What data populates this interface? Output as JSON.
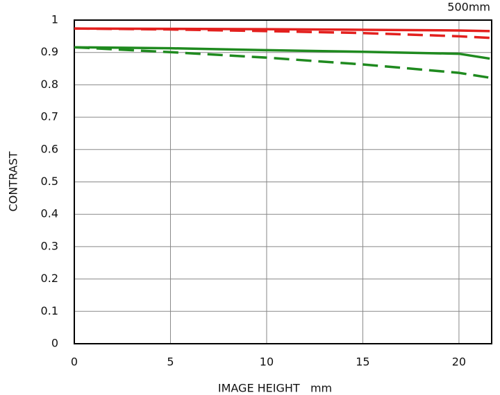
{
  "chart_data": {
    "type": "line",
    "subtitle": "500mm",
    "y_label": "CONTRAST",
    "x_label": "IMAGE HEIGHT   mm",
    "x": [
      0,
      5,
      10,
      15,
      20,
      21.6
    ],
    "series": [
      {
        "color": "#e3201e",
        "dash": false,
        "values": [
          0.974,
          0.973,
          0.972,
          0.97,
          0.968,
          0.966
        ]
      },
      {
        "color": "#e3201e",
        "dash": true,
        "values": [
          0.974,
          0.971,
          0.966,
          0.96,
          0.95,
          0.945
        ]
      },
      {
        "color": "#1f8a1f",
        "dash": false,
        "values": [
          0.916,
          0.913,
          0.907,
          0.902,
          0.896,
          0.881
        ]
      },
      {
        "color": "#1f8a1f",
        "dash": true,
        "values": [
          0.916,
          0.901,
          0.884,
          0.863,
          0.837,
          0.822
        ]
      }
    ],
    "xlim": [
      0,
      21.7
    ],
    "xticks": [
      0,
      5,
      10,
      15,
      20
    ],
    "ylim": [
      0,
      1
    ],
    "yticks": [
      0,
      0.1,
      0.2,
      0.3,
      0.4,
      0.5,
      0.6,
      0.7,
      0.8,
      0.9,
      1
    ],
    "grid": true
  }
}
